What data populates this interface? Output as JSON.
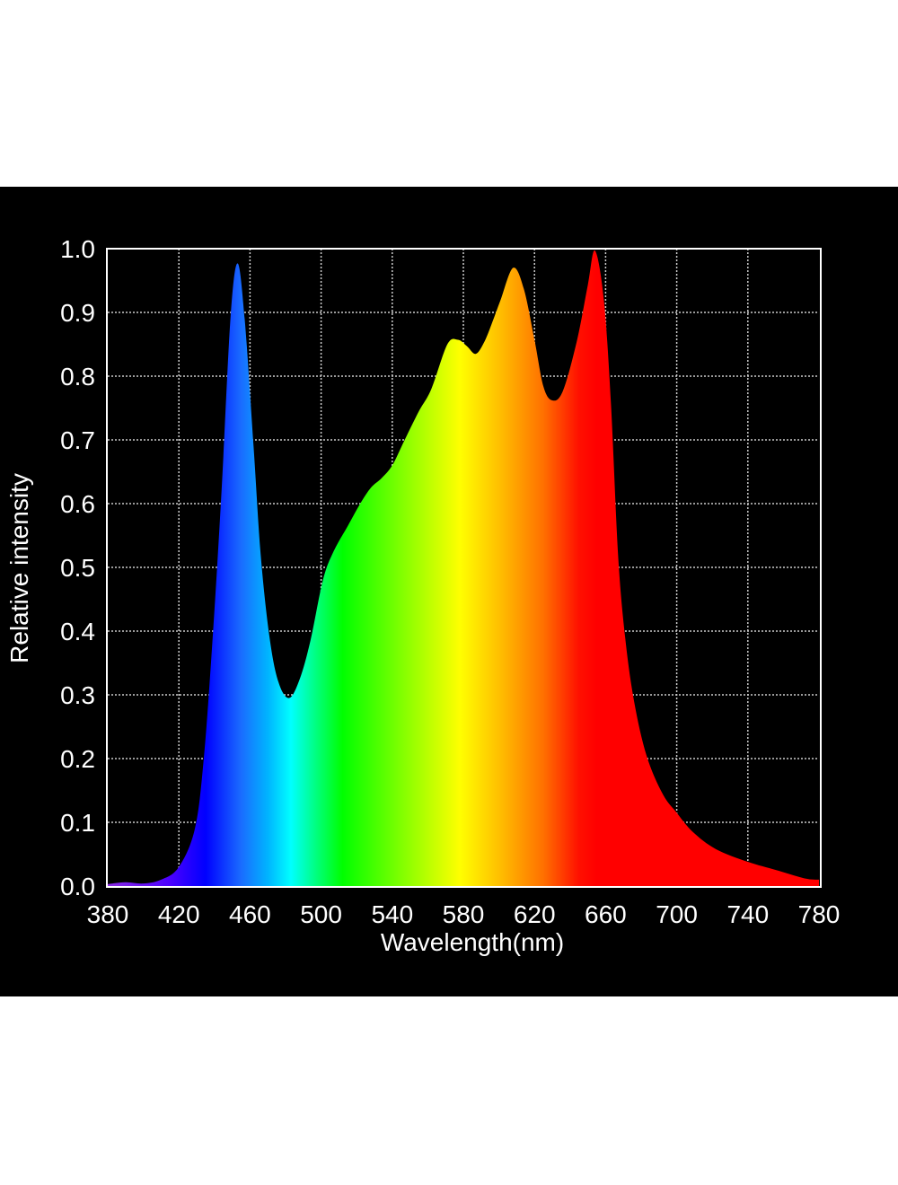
{
  "chart_data": {
    "type": "area",
    "title": "",
    "xlabel": "Wavelength(nm)",
    "ylabel": "Relative intensity",
    "xlim": [
      380,
      780
    ],
    "ylim": [
      0.0,
      1.0
    ],
    "xticks": [
      "380",
      "420",
      "460",
      "500",
      "540",
      "580",
      "620",
      "660",
      "700",
      "740",
      "780"
    ],
    "yticks": [
      "0.0",
      "0.1",
      "0.2",
      "0.3",
      "0.4",
      "0.5",
      "0.6",
      "0.7",
      "0.8",
      "0.9",
      "1.0"
    ],
    "grid": true,
    "fill": "visible-spectrum gradient",
    "series": [
      {
        "x": [
          380,
          390,
          400,
          410,
          420,
          429,
          434,
          439,
          444,
          449,
          453,
          457,
          462,
          466,
          471,
          476,
          482,
          488,
          494,
          501,
          507,
          515,
          522,
          528,
          534,
          540,
          547,
          555,
          562,
          571,
          577,
          582,
          587,
          592,
          597,
          601,
          608,
          614,
          620,
          625,
          630,
          636,
          644,
          650,
          654,
          659,
          663,
          667,
          671,
          676,
          683,
          692,
          700,
          709,
          722,
          740,
          756,
          772,
          780
        ],
        "y": [
          0.003,
          0.006,
          0.004,
          0.01,
          0.03,
          0.09,
          0.2,
          0.39,
          0.62,
          0.89,
          0.977,
          0.89,
          0.69,
          0.52,
          0.39,
          0.32,
          0.295,
          0.325,
          0.385,
          0.48,
          0.525,
          0.565,
          0.6,
          0.625,
          0.64,
          0.66,
          0.7,
          0.745,
          0.78,
          0.85,
          0.857,
          0.847,
          0.835,
          0.855,
          0.89,
          0.92,
          0.97,
          0.937,
          0.857,
          0.784,
          0.762,
          0.777,
          0.857,
          0.943,
          0.997,
          0.92,
          0.757,
          0.52,
          0.39,
          0.29,
          0.205,
          0.145,
          0.115,
          0.085,
          0.058,
          0.038,
          0.025,
          0.012,
          0.01
        ]
      }
    ]
  },
  "colors": {
    "background": "#000000",
    "page": "#ffffff",
    "grid": "#cccccc",
    "spectrum_stops": [
      {
        "nm": 380,
        "color": "#8a2be2"
      },
      {
        "nm": 415,
        "color": "#4b00ff"
      },
      {
        "nm": 435,
        "color": "#0000ff"
      },
      {
        "nm": 455,
        "color": "#1a6cff"
      },
      {
        "nm": 470,
        "color": "#00b4ff"
      },
      {
        "nm": 483,
        "color": "#00ffff"
      },
      {
        "nm": 497,
        "color": "#00ff80"
      },
      {
        "nm": 512,
        "color": "#00ff00"
      },
      {
        "nm": 545,
        "color": "#80ff00"
      },
      {
        "nm": 578,
        "color": "#ffff00"
      },
      {
        "nm": 600,
        "color": "#ffc000"
      },
      {
        "nm": 625,
        "color": "#ff7000"
      },
      {
        "nm": 645,
        "color": "#ff1000"
      },
      {
        "nm": 655,
        "color": "#ff0000"
      },
      {
        "nm": 780,
        "color": "#ff0000"
      }
    ]
  }
}
